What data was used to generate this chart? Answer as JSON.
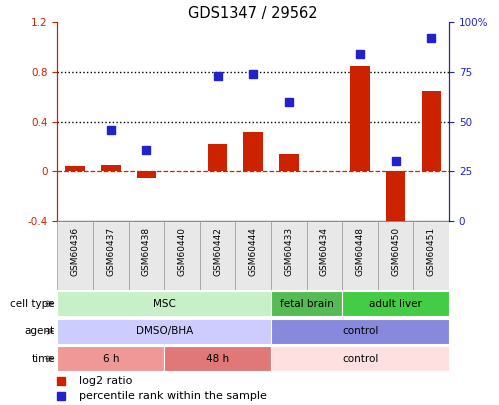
{
  "title": "GDS1347 / 29562",
  "samples": [
    "GSM60436",
    "GSM60437",
    "GSM60438",
    "GSM60440",
    "GSM60442",
    "GSM60444",
    "GSM60433",
    "GSM60434",
    "GSM60448",
    "GSM60450",
    "GSM60451"
  ],
  "log2_ratio": [
    0.04,
    0.05,
    -0.05,
    0.0,
    0.22,
    0.32,
    0.14,
    0.0,
    0.85,
    -0.5,
    0.65
  ],
  "percentile_rank": [
    null,
    46,
    36,
    null,
    73,
    74,
    60,
    null,
    84,
    30,
    92
  ],
  "ylim_left": [
    -0.4,
    1.2
  ],
  "ylim_right": [
    0,
    100
  ],
  "bar_color": "#cc2200",
  "dot_color": "#2222cc",
  "cell_type_row": {
    "label": "cell type",
    "groups": [
      {
        "text": "MSC",
        "start": 0,
        "end": 6,
        "color": "#c8f0c8"
      },
      {
        "text": "fetal brain",
        "start": 6,
        "end": 8,
        "color": "#55bb55"
      },
      {
        "text": "adult liver",
        "start": 8,
        "end": 11,
        "color": "#44cc44"
      }
    ]
  },
  "agent_row": {
    "label": "agent",
    "groups": [
      {
        "text": "DMSO/BHA",
        "start": 0,
        "end": 6,
        "color": "#ccccff"
      },
      {
        "text": "control",
        "start": 6,
        "end": 11,
        "color": "#8888dd"
      }
    ]
  },
  "time_row": {
    "label": "time",
    "groups": [
      {
        "text": "6 h",
        "start": 0,
        "end": 3,
        "color": "#f09898"
      },
      {
        "text": "48 h",
        "start": 3,
        "end": 6,
        "color": "#e07878"
      },
      {
        "text": "control",
        "start": 6,
        "end": 11,
        "color": "#ffe0e0"
      }
    ]
  }
}
